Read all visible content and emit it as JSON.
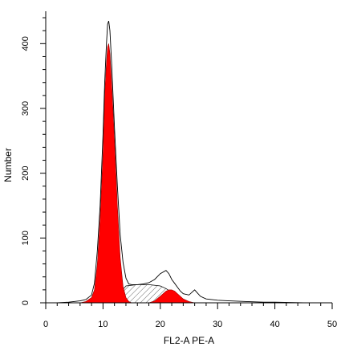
{
  "chart_data": {
    "type": "area",
    "title": "",
    "xlabel": "FL2-A PE-A",
    "ylabel": "Number",
    "xlim": [
      0,
      50
    ],
    "ylim": [
      0,
      450
    ],
    "xticks": [
      0,
      10,
      20,
      30,
      40,
      50
    ],
    "yticks": [
      0,
      100,
      200,
      300,
      400
    ],
    "grid": false,
    "colors": {
      "g1_peak": "#ff0000",
      "g2_peak": "#ff0000",
      "outline": "#000000",
      "s_phase_hatch": "#000000"
    },
    "series": [
      {
        "role": "histogram",
        "x": [
          0,
          2,
          4,
          6,
          7,
          8,
          8.5,
          9,
          9.5,
          10,
          10.3,
          10.6,
          10.8,
          11,
          11.2,
          11.5,
          12,
          12.5,
          13,
          13.5,
          14,
          14.5,
          15,
          16,
          17,
          18,
          19,
          20,
          21,
          21.5,
          22,
          22.5,
          23,
          23.5,
          24,
          25,
          25.5,
          26,
          26.5,
          27,
          28,
          30,
          32,
          35,
          38,
          40,
          45,
          50
        ],
        "y": [
          0,
          0,
          1,
          3,
          5,
          12,
          30,
          80,
          150,
          260,
          340,
          400,
          430,
          435,
          420,
          370,
          270,
          180,
          105,
          62,
          38,
          29,
          28,
          28,
          29,
          31,
          36,
          45,
          50,
          45,
          36,
          30,
          24,
          18,
          14,
          12,
          16,
          20,
          15,
          10,
          6,
          4,
          3,
          2,
          1,
          1,
          0,
          0
        ]
      },
      {
        "role": "G1 peak",
        "x": [
          6,
          7,
          8,
          8.5,
          9,
          9.5,
          10,
          10.3,
          10.6,
          10.8,
          11,
          11.2,
          11.5,
          12,
          12.5,
          13,
          13.5,
          14,
          14.5,
          15
        ],
        "y": [
          0,
          2,
          8,
          20,
          60,
          130,
          230,
          320,
          370,
          395,
          400,
          385,
          340,
          250,
          150,
          70,
          25,
          8,
          2,
          0
        ]
      },
      {
        "role": "S phase",
        "x": [
          10,
          12,
          14,
          16,
          18,
          20,
          21,
          22,
          23,
          24,
          25
        ],
        "y": [
          0,
          5,
          26,
          28,
          28,
          26,
          22,
          16,
          10,
          4,
          0
        ]
      },
      {
        "role": "G2 peak",
        "x": [
          18,
          19,
          20,
          21,
          21.5,
          22,
          22.5,
          23,
          24,
          25,
          26
        ],
        "y": [
          0,
          3,
          10,
          18,
          20,
          20,
          18,
          14,
          6,
          2,
          0
        ]
      }
    ]
  }
}
